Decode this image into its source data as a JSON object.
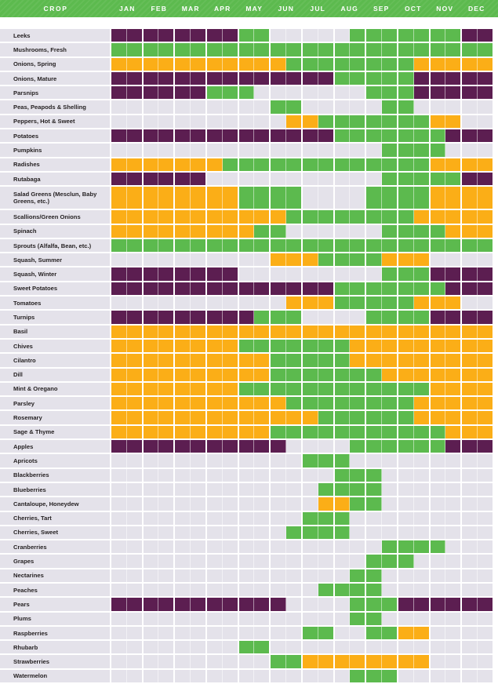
{
  "colors": {
    "green": "#5CBA4E",
    "orange": "#FBAE17",
    "purple": "#5C1E51",
    "empty": "#E4E2EA",
    "header_bg": "#5CBA4E",
    "header_text": "#FFFFFF",
    "label_text": "#231F20"
  },
  "header": {
    "crop_label": "CROP",
    "months": [
      "JAN",
      "FEB",
      "MAR",
      "APR",
      "MAY",
      "JUN",
      "JUL",
      "AUG",
      "SEP",
      "OCT",
      "NOV",
      "DEC"
    ]
  },
  "chart_data": {
    "type": "heatmap",
    "resolution": "half-month (24 cells per row, 2 per month)",
    "cell_code_legend": {
      "P": "purple",
      "G": "green",
      "O": "orange",
      "E": "empty"
    },
    "rows": [
      {
        "crop": "Leeks",
        "cells": "PPPPPPPPGGEEEEEGGGGGGGPP"
      },
      {
        "crop": "Mushrooms, Fresh",
        "cells": "GGGGGGGGGGGGGGGGGGGGGGGG"
      },
      {
        "crop": "Onions, Spring",
        "cells": "OOOOOOOOOOOGGGGGGGGOOOOO"
      },
      {
        "crop": "Onions, Mature",
        "cells": "PPPPPPPPPPPPPPGGGGGPPPPP"
      },
      {
        "crop": "Parsnips",
        "cells": "PPPPPPGGGEEEEEEEGGGPPPPP"
      },
      {
        "crop": "Peas, Peapods & Shelling",
        "cells": "EEEEEEEEEEGGEEEEEGGEEEEE"
      },
      {
        "crop": "Peppers, Hot & Sweet",
        "cells": "EEEEEEEEEEEOOGGGGGGGOOEE"
      },
      {
        "crop": "Potatoes",
        "cells": "PPPPPPPPPPPPPPGGGGGGGPPP"
      },
      {
        "crop": "Pumpkins",
        "cells": "EEEEEEEEEEEEEEEEEGGGGEEE"
      },
      {
        "crop": "Radishes",
        "cells": "OOOOOOOGGGGGGGGGGGGGOOOO"
      },
      {
        "crop": "Rutabaga",
        "cells": "PPPPPPEEEEEEEEEEEGGGGGPP"
      },
      {
        "crop": "Salad Greens (Mesclun, Baby Greens, etc.)",
        "tall": true,
        "cells": "OOOOOOOOGGGGEEEEGGGGOOOO"
      },
      {
        "crop": "Scallions/Green Onions",
        "cells": "OOOOOOOOOOOGGGGGGGGOOOOO"
      },
      {
        "crop": "Spinach",
        "cells": "OOOOOOOOOGGEEEEEEGGGGOOO"
      },
      {
        "crop": "Sprouts (Alfalfa, Bean, etc.)",
        "cells": "GGGGGGGGGGGGGGGGGGGGGGGG"
      },
      {
        "crop": "Squash, Summer",
        "cells": "EEEEEEEEEEOOOGGGGOOOEEEE"
      },
      {
        "crop": "Squash, Winter",
        "cells": "PPPPPPPPEEEEEEEEEGGGPPPP"
      },
      {
        "crop": "Sweet Potatoes",
        "cells": "PPPPPPPPPPPPPPGGGGGGGPPP"
      },
      {
        "crop": "Tomatoes",
        "cells": "EEEEEEEEEEEOOOGGGGGOOOEE"
      },
      {
        "crop": "Turnips",
        "cells": "PPPPPPPPPGGGEEEEGGGGPPPP"
      },
      {
        "crop": "Basil",
        "cells": "OOOOOOOOOOOOOOOOOOOOOOOO"
      },
      {
        "crop": "Chives",
        "cells": "OOOOOOOOGGGGGGGOOOOOOOOO"
      },
      {
        "crop": "Cilantro",
        "cells": "OOOOOOOOOOGGGGGOOOOOOOOO"
      },
      {
        "crop": "Dill",
        "cells": "OOOOOOOOOOGGGGGGGOOOOOOO"
      },
      {
        "crop": "Mint & Oregano",
        "cells": "OOOOOOOOGGGGGGGGGGGGOOOO"
      },
      {
        "crop": "Parsley",
        "cells": "OOOOOOOOOOOGGGGGGGGOOOOO"
      },
      {
        "crop": "Rosemary",
        "cells": "OOOOOOOOOOOOOGGGGGGOOOOO"
      },
      {
        "crop": "Sage & Thyme",
        "cells": "OOOOOOOOOOGGGGGGGGGGGOOO"
      },
      {
        "crop": "Apples",
        "cells": "PPPPPPPPPPPEEEEGGGGGGPPP"
      },
      {
        "crop": "Apricots",
        "cells": "EEEEEEEEEEEEGGGEEEEEEEEE"
      },
      {
        "crop": "Blackberries",
        "cells": "EEEEEEEEEEEEEEGGGEEEEEEE"
      },
      {
        "crop": "Blueberries",
        "cells": "EEEEEEEEEEEEEGGGGEEEEEEE"
      },
      {
        "crop": "Cantaloupe, Honeydew",
        "cells": "EEEEEEEEEEEEEOOGGEEEEEEE"
      },
      {
        "crop": "Cherries, Tart",
        "cells": "EEEEEEEEEEEEGGGEEEEEEEEE"
      },
      {
        "crop": "Cherries, Sweet",
        "cells": "EEEEEEEEEEEGGGGEEEEEEEEE"
      },
      {
        "crop": "Cranberries",
        "cells": "EEEEEEEEEEEEEEEEEGGGGEEE"
      },
      {
        "crop": "Grapes",
        "cells": "EEEEEEEEEEEEEEEEGGGEEEEE"
      },
      {
        "crop": "Nectarines",
        "cells": "EEEEEEEEEEEEEEEGGEEEEEEE"
      },
      {
        "crop": "Peaches",
        "cells": "EEEEEEEEEEEEEGGGGEEEEEEE"
      },
      {
        "crop": "Pears",
        "cells": "PPPPPPPPPPPEEEEGGGPPPPPP"
      },
      {
        "crop": "Plums",
        "cells": "EEEEEEEEEEEEEEEGGEEEEEEE"
      },
      {
        "crop": "Raspberries",
        "cells": "EEEEEEEEEEEEGGEEGGOOEEEE"
      },
      {
        "crop": "Rhubarb",
        "cells": "EEEEEEEEGGEEEEEEEEEEEEEE"
      },
      {
        "crop": "Strawberries",
        "cells": "EEEEEEEEEEGGOOOOOOOOEEEE"
      },
      {
        "crop": "Watermelon",
        "cells": "EEEEEEEEEEEEEEEGGGEEEEEE"
      }
    ]
  }
}
